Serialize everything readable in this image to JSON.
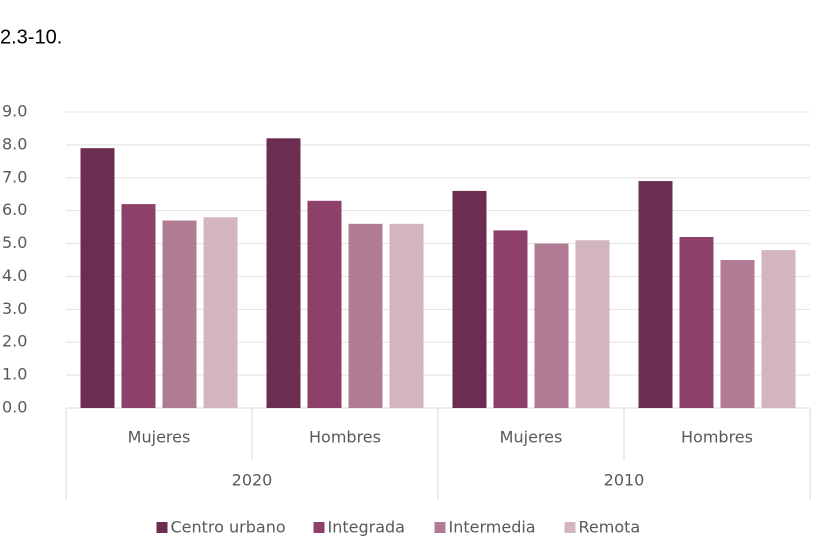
{
  "header_text": "2.3-10.",
  "chart_data": {
    "type": "bar",
    "categories": [
      "Mujeres",
      "Hombres",
      "Mujeres",
      "Hombres"
    ],
    "category_groups": [
      "2020",
      "2010"
    ],
    "series": [
      {
        "name": "Centro urbano",
        "color": "#6b2e50",
        "values": [
          7.9,
          8.2,
          6.6,
          6.9
        ]
      },
      {
        "name": "Integrada",
        "color": "#8d4068",
        "values": [
          6.2,
          6.3,
          5.4,
          5.2
        ]
      },
      {
        "name": "Intermedia",
        "color": "#b07b93",
        "values": [
          5.7,
          5.6,
          5.0,
          4.5
        ]
      },
      {
        "name": "Remota",
        "color": "#d3b5c1",
        "values": [
          5.8,
          5.6,
          5.1,
          4.8
        ]
      }
    ],
    "ylim": [
      0,
      9
    ],
    "yticks": [
      {
        "value": 0,
        "label": "0.0"
      },
      {
        "value": 1,
        "label": "1.0"
      },
      {
        "value": 2,
        "label": "2.0"
      },
      {
        "value": 3,
        "label": "3.0"
      },
      {
        "value": 4,
        "label": "4.0"
      },
      {
        "value": 5,
        "label": "5.0"
      },
      {
        "value": 6,
        "label": "6.0"
      },
      {
        "value": 7,
        "label": "7.0"
      },
      {
        "value": 8,
        "label": "8.0"
      },
      {
        "value": 9,
        "label": "9.0"
      }
    ],
    "grid": true,
    "legend": "bottom"
  }
}
